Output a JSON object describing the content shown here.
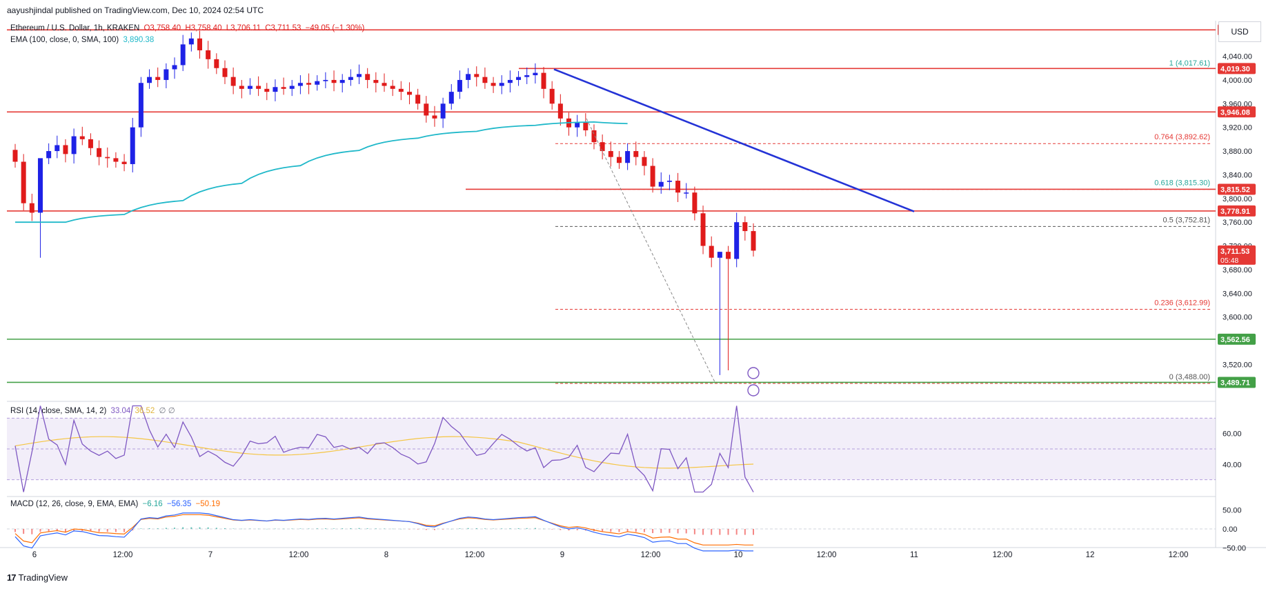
{
  "header": {
    "published": "aayushjindal published on TradingView.com, Dec 10, 2024 02:54 UTC"
  },
  "legend": {
    "main": "Ethereum / U.S. Dollar, 1h, KRAKEN",
    "ohlc": {
      "o": "O3,758.40",
      "h": "H3,758.40",
      "l": "L3,706.11",
      "c": "C3,711.53",
      "chg": "−49.05 (−1.30%)"
    },
    "ema_label": "EMA (100, close, 0, SMA, 100)",
    "ema_value": "3,890.38",
    "rsi_label": "RSI (14, close, SMA, 14, 2)",
    "rsi_value": "33.04",
    "rsi_sma": "36.52",
    "rsi_extra": "∅ ∅",
    "macd_label": "MACD (12, 26, close, 9, EMA, EMA)",
    "macd_hist": "−6.16",
    "macd_macd": "−56.35",
    "macd_signal": "−50.19"
  },
  "currency": "USD",
  "branding": "TradingView",
  "colors": {
    "up": "#1e22e6",
    "down": "#e01b1b",
    "ema": "#1fb8c9",
    "red_level": "#e53935",
    "green_level": "#43a047",
    "trendline": "#2433d6",
    "rsi": "#7e57c2",
    "rsi_sma": "#f5c542",
    "macd": "#2962ff",
    "signal": "#ff6d00"
  },
  "chart_data": {
    "type": "candlestick",
    "symbol": "Ethereum / U.S. Dollar",
    "interval": "1h",
    "ylim": [
      3460,
      4100
    ],
    "y_ticks": [
      3520,
      3560,
      3600,
      3640,
      3680,
      3720,
      3760,
      3800,
      3840,
      3880,
      3920,
      3960,
      4000,
      4040
    ],
    "y_tick_labels": [
      "3,520.00",
      "3,560.00",
      "3,600.00",
      "3,640.00",
      "3,680.00",
      "3,720.00",
      "3,760.00",
      "3,800.00",
      "3,840.00",
      "3,880.00",
      "3,920.00",
      "3,960.00",
      "4,000.00",
      "4,040.00"
    ],
    "x_labels": [
      "6",
      "12:00",
      "7",
      "12:00",
      "8",
      "12:00",
      "9",
      "12:00",
      "10",
      "12:00",
      "11",
      "12:00",
      "12",
      "12:00"
    ],
    "candles_close": [
      3862,
      3792,
      3776,
      3868,
      3880,
      3890,
      3875,
      3905,
      3900,
      3885,
      3870,
      3868,
      3862,
      3858,
      3920,
      3995,
      4005,
      4000,
      4018,
      4025,
      4060,
      4070,
      4050,
      4035,
      4020,
      4005,
      3990,
      3985,
      3990,
      3985,
      3980,
      3988,
      3985,
      3990,
      3995,
      3992,
      3998,
      4000,
      3995,
      4000,
      4005,
      4010,
      4000,
      3995,
      3990,
      3985,
      3980,
      3975,
      3960,
      3940,
      3935,
      3960,
      3980,
      4000,
      4010,
      4005,
      3995,
      3990,
      3995,
      4000,
      4005,
      4008,
      4012,
      3985,
      3960,
      3935,
      3920,
      3928,
      3915,
      3895,
      3880,
      3870,
      3860,
      3880,
      3870,
      3855,
      3820,
      3828,
      3830,
      3810,
      3810,
      3775,
      3720,
      3700,
      3710,
      3698,
      3760,
      3745,
      3712
    ],
    "price_labels": [
      {
        "text": "4,084.52",
        "type": "red"
      },
      {
        "text": "4,019.30",
        "type": "red"
      },
      {
        "text": "3,946.08",
        "type": "red"
      },
      {
        "text": "3,815.52",
        "type": "red"
      },
      {
        "text": "3,778.91",
        "type": "red"
      },
      {
        "text": "3,711.53",
        "sub": "05:48",
        "type": "red"
      },
      {
        "text": "3,562.56",
        "type": "green"
      },
      {
        "text": "3,489.71",
        "type": "green"
      }
    ],
    "fib_levels": [
      {
        "ratio": "1",
        "price": 4017.61,
        "label": "1 (4,017.61)"
      },
      {
        "ratio": "0.764",
        "price": 3892.62,
        "label": "0.764 (3,892.62)"
      },
      {
        "ratio": "0.618",
        "price": 3815.3,
        "label": "0.618 (3,815.30)"
      },
      {
        "ratio": "0.5",
        "price": 3752.81,
        "label": "0.5 (3,752.81)"
      },
      {
        "ratio": "0.236",
        "price": 3612.99,
        "label": "0.236 (3,612.99)"
      },
      {
        "ratio": "0",
        "price": 3488.0,
        "label": "0 (3,488.00)"
      }
    ],
    "horizontal_levels": [
      4084.52,
      4019.3,
      3946.08,
      3815.52,
      3778.91,
      3562.56,
      3489.71
    ],
    "trendline": {
      "from_price": 4018,
      "to_price": 3778
    },
    "rsi": {
      "ylim": [
        20,
        80
      ],
      "ticks": [
        40,
        60
      ],
      "tick_labels": [
        "40.00",
        "60.00"
      ],
      "band": [
        30,
        70
      ],
      "last": 33.04,
      "sma": 36.52
    },
    "macd": {
      "ticks": [
        50,
        0,
        -50
      ],
      "tick_labels": [
        "50.00",
        "0.00",
        "−50.00"
      ],
      "macd": -56.35,
      "signal": -50.19,
      "hist": -6.16
    }
  }
}
